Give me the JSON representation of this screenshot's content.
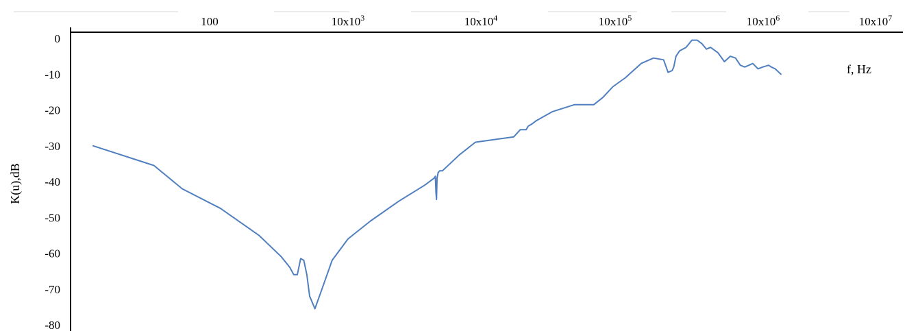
{
  "chart_data": {
    "type": "line",
    "title": "",
    "xlabel": "f, Hz",
    "ylabel": "K(u),dB",
    "x_scale": "log",
    "x_tick_labels": [
      "100",
      "10x10^3",
      "10x10^4",
      "10x10^5",
      "10x10^6",
      "10x10^7"
    ],
    "y_ticks": [
      0,
      -10,
      -20,
      -30,
      -40,
      -50,
      -60,
      -70,
      -80
    ],
    "ylim": [
      -80,
      0
    ],
    "grid": false,
    "line_color": "#4f7fbf",
    "series": [
      {
        "x": [
          20,
          60,
          100,
          200,
          400,
          600,
          700,
          750,
          800,
          850,
          900,
          950,
          1000,
          1100,
          1250,
          1500,
          2000,
          3000,
          5000,
          8000,
          9500,
          9700,
          9800,
          9900,
          10000,
          10200,
          10500,
          11000,
          15000,
          20000,
          40000,
          45000,
          50000,
          52000,
          55000,
          60000,
          80000,
          120000,
          150000,
          170000,
          200000,
          240000,
          300000,
          400000,
          500000,
          600000,
          650000,
          700000,
          720000,
          750000,
          800000,
          900000,
          1000000,
          1100000,
          1200000,
          1300000,
          1400000,
          1600000,
          1800000,
          2000000,
          2200000,
          2400000,
          2600000,
          2800000,
          3000000,
          3300000,
          3600000,
          4000000,
          4200000,
          4500000,
          5000000
        ],
        "y": [
          -30,
          -35.5,
          -42,
          -47.5,
          -55,
          -61,
          -64,
          -66,
          -66,
          -61.5,
          -62,
          -66,
          -72,
          -75.5,
          -70,
          -62,
          -56,
          -51,
          -45.5,
          -41,
          -39,
          -38.5,
          -43,
          -45,
          -39,
          -37.5,
          -37,
          -37,
          -32.5,
          -29,
          -27.5,
          -25.5,
          -25.5,
          -24.5,
          -24,
          -23,
          -20.5,
          -18.5,
          -18.5,
          -18.5,
          -16.5,
          -13.5,
          -11,
          -7,
          -5.5,
          -6,
          -9.5,
          -9,
          -8,
          -5,
          -3.5,
          -2.5,
          -0.5,
          -0.5,
          -1.5,
          -3,
          -2.5,
          -4,
          -6.5,
          -5,
          -5.5,
          -7.5,
          -8,
          -7.5,
          -7,
          -8.5,
          -8,
          -7.5,
          -8,
          -8.5,
          -10
        ]
      }
    ]
  }
}
